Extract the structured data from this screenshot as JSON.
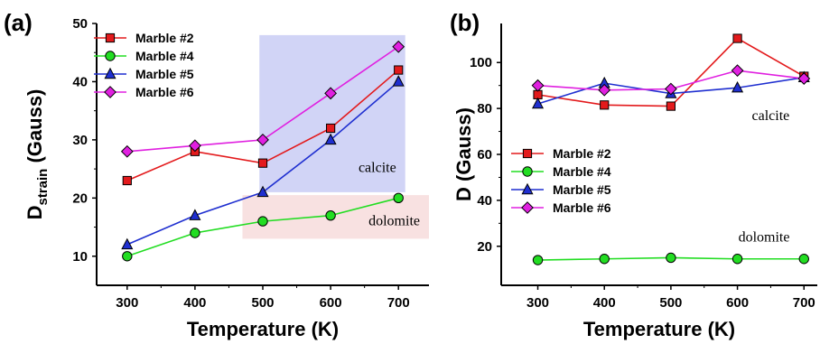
{
  "figure": {
    "panels": [
      "(a)",
      "(b)"
    ]
  },
  "chart_data": [
    {
      "panel": "(a)",
      "type": "line",
      "title": "",
      "xlabel": "Temperature (K)",
      "ylabel": {
        "main": "D",
        "sub": "strain",
        "unit": "(Gauss)"
      },
      "x": [
        300,
        400,
        500,
        600,
        700
      ],
      "xlim": [
        255,
        745
      ],
      "ylim": [
        5,
        50
      ],
      "xticks": [
        300,
        400,
        500,
        600,
        700
      ],
      "yticks": [
        10,
        20,
        30,
        40,
        50
      ],
      "grid": false,
      "legend_position": "top-left",
      "series": [
        {
          "name": "Marble #2",
          "values": [
            23,
            28,
            26,
            32,
            42
          ],
          "color": "#e31a1c",
          "marker": "square"
        },
        {
          "name": "Marble #4",
          "values": [
            10,
            14,
            16,
            17,
            20
          ],
          "color": "#22dd22",
          "marker": "circle"
        },
        {
          "name": "Marble #5",
          "values": [
            12,
            17,
            21,
            30,
            40
          ],
          "color": "#1f2fd0",
          "marker": "triangle"
        },
        {
          "name": "Marble #6",
          "values": [
            28,
            29,
            30,
            38,
            46
          ],
          "color": "#e020e0",
          "marker": "diamond"
        }
      ],
      "regions": [
        {
          "label": "calcite",
          "x_range": [
            495,
            710
          ],
          "y_range": [
            21,
            48
          ],
          "color": "#c9cdf5"
        },
        {
          "label": "dolomite",
          "x_range": [
            470,
            745
          ],
          "y_range": [
            13,
            20.5
          ],
          "color": "#f7dcdc"
        }
      ]
    },
    {
      "panel": "(b)",
      "type": "line",
      "title": "",
      "xlabel": "Temperature (K)",
      "ylabel": {
        "main": "D",
        "sub": "",
        "unit": "(Gauss)"
      },
      "x": [
        300,
        400,
        500,
        600,
        700
      ],
      "xlim": [
        245,
        720
      ],
      "ylim": [
        3,
        117
      ],
      "xticks": [
        300,
        400,
        500,
        600,
        700
      ],
      "yticks": [
        20,
        40,
        60,
        80,
        100
      ],
      "grid": false,
      "legend_position": "center-left",
      "series": [
        {
          "name": "Marble #2",
          "values": [
            86,
            81.5,
            81,
            110.5,
            94
          ],
          "color": "#e31a1c",
          "marker": "square"
        },
        {
          "name": "Marble #4",
          "values": [
            14,
            14.5,
            15,
            14.5,
            14.5
          ],
          "color": "#22dd22",
          "marker": "circle"
        },
        {
          "name": "Marble #5",
          "values": [
            82,
            91,
            86.5,
            89,
            93.5
          ],
          "color": "#1f2fd0",
          "marker": "triangle"
        },
        {
          "name": "Marble #6",
          "values": [
            90,
            88,
            88.5,
            96.5,
            93
          ],
          "color": "#e020e0",
          "marker": "diamond"
        }
      ],
      "annotations": [
        {
          "text": "calcite",
          "x": 650,
          "y": 75
        },
        {
          "text": "dolomite",
          "x": 640,
          "y": 22
        }
      ]
    }
  ]
}
